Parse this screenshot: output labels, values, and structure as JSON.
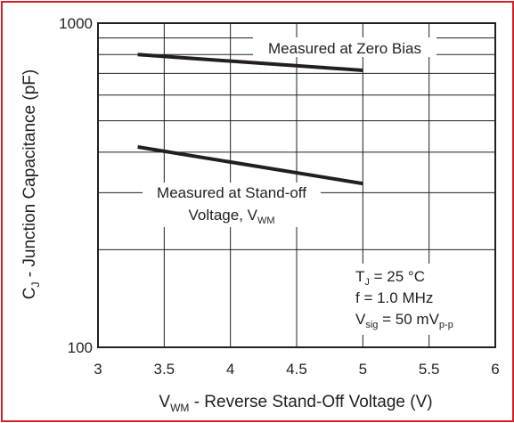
{
  "chart_data": {
    "type": "line",
    "title": "",
    "xlabel": {
      "prefix": "V",
      "sub": "WM",
      "suffix": " - Reverse Stand-Off Voltage (V)"
    },
    "ylabel": {
      "prefix": "C",
      "sub": "J",
      "suffix": " - Junction Capacitance (pF)"
    },
    "xlim": [
      3,
      6
    ],
    "ylim": [
      100,
      1000
    ],
    "yscale": "log",
    "x_ticks": [
      3,
      3.5,
      4,
      4.5,
      5,
      5.5,
      6
    ],
    "x_tick_labels": [
      "3",
      "3.5",
      "4",
      "4.5",
      "5",
      "5.5",
      "6"
    ],
    "y_tick_labels": [
      {
        "value": 1000,
        "label": "1000"
      },
      {
        "value": 100,
        "label": "100"
      }
    ],
    "y_gridlines": [
      100,
      200,
      300,
      400,
      500,
      600,
      700,
      800,
      900,
      1000
    ],
    "grid": true,
    "series": [
      {
        "name": "Measured at Zero Bias",
        "x": [
          3.3,
          5.0
        ],
        "values": [
          800,
          715
        ]
      },
      {
        "name": "Measured at Stand-off Voltage",
        "x": [
          3.3,
          5.0
        ],
        "values": [
          415,
          320
        ]
      }
    ],
    "annotations": {
      "zero_bias": "Measured at Zero Bias",
      "standoff_line1": "Measured at Stand-off",
      "standoff_line2_prefix": "Voltage, V",
      "standoff_line2_sub": "WM"
    },
    "conditions": {
      "tj_prefix": "T",
      "tj_sub": "J",
      "tj_suffix": " = 25 °C",
      "freq": "f = 1.0 MHz",
      "vsig_prefix": "V",
      "vsig_sub": "sig",
      "vsig_mid": " = 50 mV",
      "vsig_sub2": "p-p"
    },
    "colors": {
      "frame": "#d42027",
      "ink": "#231f20"
    }
  }
}
